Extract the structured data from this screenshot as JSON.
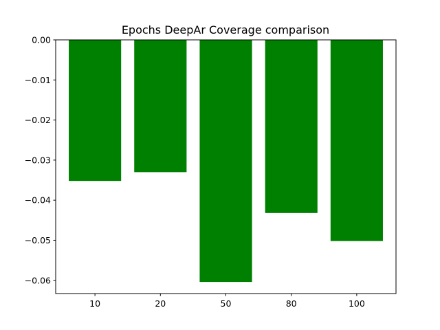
{
  "chart_data": {
    "type": "bar",
    "title": "Epochs DeepAr Coverage comparison",
    "xlabel": "",
    "ylabel": "",
    "categories": [
      "10",
      "20",
      "50",
      "80",
      "100"
    ],
    "values": [
      -0.0352,
      -0.033,
      -0.0604,
      -0.0432,
      -0.0502
    ],
    "ylim": [
      -0.0633,
      0.0
    ],
    "yticks": [
      0.0,
      -0.01,
      -0.02,
      -0.03,
      -0.04,
      -0.05,
      -0.06
    ],
    "ytick_labels": [
      "0.00",
      "−0.01",
      "−0.02",
      "−0.03",
      "−0.04",
      "−0.05",
      "−0.06"
    ],
    "bar_color": "#008000",
    "grid": false,
    "legend": "none"
  }
}
